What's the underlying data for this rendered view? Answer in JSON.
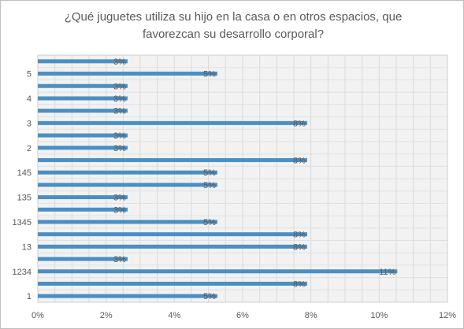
{
  "chart_data": {
    "type": "bar",
    "orientation": "horizontal",
    "title_line1": "¿Qué juguetes utiliza su hijo en la casa o en otros espacios, que",
    "title_line2": "favorezcan su desarrollo corporal?",
    "categories": [
      "1",
      "",
      "1234",
      "",
      "13",
      "",
      "1345",
      "",
      "135",
      "",
      "145",
      "",
      "2",
      "",
      "3",
      "",
      "4",
      "",
      "5",
      ""
    ],
    "values": [
      5.26,
      7.89,
      10.53,
      2.63,
      7.89,
      7.89,
      5.26,
      2.63,
      2.63,
      5.26,
      5.26,
      7.89,
      2.63,
      2.63,
      7.89,
      2.63,
      2.63,
      2.63,
      5.26,
      2.63
    ],
    "data_labels": [
      "5%",
      "8%",
      "11%",
      "3%",
      "8%",
      "8%",
      "5%",
      "3%",
      "3%",
      "5%",
      "5%",
      "8%",
      "3%",
      "3%",
      "8%",
      "3%",
      "3%",
      "3%",
      "5%",
      "3%"
    ],
    "x_ticks": [
      "0%",
      "2%",
      "4%",
      "6%",
      "8%",
      "10%",
      "12%"
    ],
    "xlim": [
      0,
      12
    ],
    "grid": true,
    "bar_color": "#4a8fc4"
  }
}
